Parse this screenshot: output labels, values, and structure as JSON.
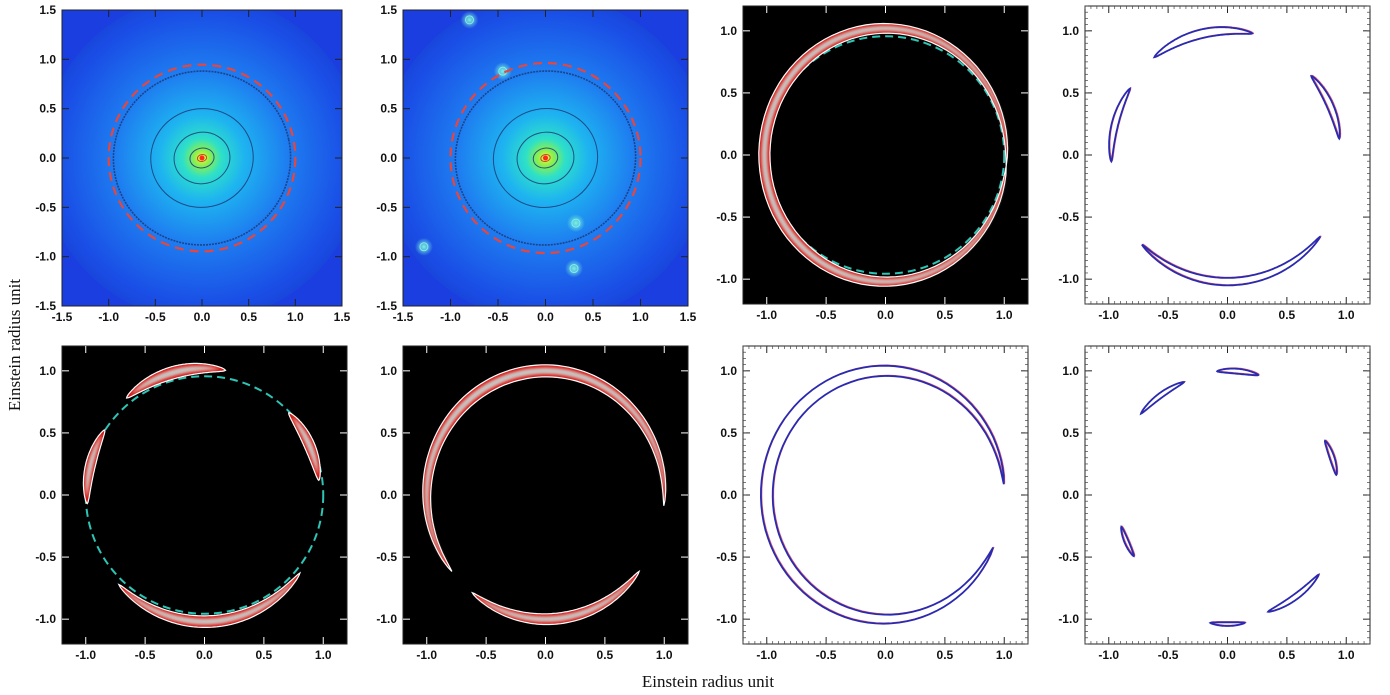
{
  "figure": {
    "xlabel": "Einstein radius unit",
    "ylabel": "Einstein radius unit"
  },
  "chart_data": [
    {
      "type": "heatmap",
      "panel": "top-1",
      "content": "galaxy density map with isodensity contours and dashed Einstein circle",
      "style": "density",
      "xlim": [
        -1.5,
        1.5
      ],
      "ylim": [
        -1.5,
        1.5
      ],
      "xticks": [
        "-1.5",
        "-1.0",
        "-0.5",
        "0.0",
        "0.5",
        "1.0",
        "1.5"
      ],
      "yticks": [
        "-1.5",
        "-1.0",
        "-0.5",
        "0.0",
        "0.5",
        "1.0",
        "1.5"
      ],
      "einstein_circle": {
        "radius": 1.0,
        "color": "#e8453c"
      },
      "background_color": "#1a3ee0",
      "substructures": []
    },
    {
      "type": "heatmap",
      "panel": "top-2",
      "content": "galaxy density map with substructure clumps, isodensity contours and dashed Einstein circle",
      "style": "density",
      "xlim": [
        -1.5,
        1.5
      ],
      "ylim": [
        -1.5,
        1.5
      ],
      "xticks": [
        "-1.5",
        "-1.0",
        "-0.5",
        "0.0",
        "0.5",
        "1.0",
        "1.5"
      ],
      "yticks": [
        "-1.5",
        "-1.0",
        "-0.5",
        "0.0",
        "0.5",
        "1.0",
        "1.5"
      ],
      "einstein_circle": {
        "radius": 1.0,
        "color": "#e8453c"
      },
      "background_color": "#1a3ee0",
      "substructures": [
        {
          "x": -0.45,
          "y": 0.88
        },
        {
          "x": 0.32,
          "y": -0.66
        },
        {
          "x": 0.3,
          "y": -1.12
        },
        {
          "x": -0.8,
          "y": 1.4
        },
        {
          "x": -1.28,
          "y": -0.9
        }
      ]
    },
    {
      "type": "heatmap",
      "panel": "top-3",
      "content": "lensed image: nearly complete Einstein ring",
      "style": "ring_image",
      "xlim": [
        -1.2,
        1.2
      ],
      "ylim": [
        -1.2,
        1.2
      ],
      "xticks": [
        "-1.0",
        "-0.5",
        "0.0",
        "0.5",
        "1.0"
      ],
      "yticks": [
        "-1.0",
        "-0.5",
        "0.0",
        "0.5",
        "1.0"
      ],
      "guide_circle": {
        "radius": 1.0,
        "color": "#2ec4b6"
      },
      "arcs": [
        {
          "theta1": -5,
          "theta2": 355,
          "radius": 1.02,
          "width": 0.085
        }
      ]
    },
    {
      "type": "scatter",
      "panel": "top-4",
      "content": "image-plane contours of four lensed arcs",
      "style": "contour",
      "xlim": [
        -1.2,
        1.2
      ],
      "ylim": [
        -1.2,
        1.2
      ],
      "xticks": [
        "-1.0",
        "-0.5",
        "0.0",
        "0.5",
        "1.0"
      ],
      "yticks": [
        "-1.0",
        "-0.5",
        "0.0",
        "0.5",
        "1.0"
      ],
      "arcs": [
        {
          "theta1": 78,
          "theta2": 128,
          "radius": 1.0,
          "width": 0.07
        },
        {
          "theta1": 8,
          "theta2": 42,
          "radius": 0.95,
          "width": 0.055
        },
        {
          "theta1": 147,
          "theta2": 183,
          "radius": 0.98,
          "width": 0.055
        },
        {
          "theta1": 225,
          "theta2": 320,
          "radius": 1.02,
          "width": 0.06
        }
      ]
    },
    {
      "type": "heatmap",
      "panel": "bottom-1",
      "content": "lensed image: four separate arcs on dashed Einstein circle",
      "style": "ring_image",
      "xlim": [
        -1.2,
        1.2
      ],
      "ylim": [
        -1.2,
        1.2
      ],
      "xticks": [
        "-1.0",
        "-0.5",
        "0.0",
        "0.5",
        "1.0"
      ],
      "yticks": [
        "-1.0",
        "-0.5",
        "0.0",
        "0.5",
        "1.0"
      ],
      "guide_circle": {
        "radius": 1.0,
        "color": "#2ec4b6"
      },
      "arcs": [
        {
          "theta1": 80,
          "theta2": 130,
          "radius": 1.02,
          "width": 0.09
        },
        {
          "theta1": 7,
          "theta2": 43,
          "radius": 0.97,
          "width": 0.08
        },
        {
          "theta1": 148,
          "theta2": 184,
          "radius": 0.99,
          "width": 0.075
        },
        {
          "theta1": 225,
          "theta2": 322,
          "radius": 1.02,
          "width": 0.085
        }
      ]
    },
    {
      "type": "heatmap",
      "panel": "bottom-2",
      "content": "lensed image: large arc and bottom arc",
      "style": "ring_image",
      "xlim": [
        -1.2,
        1.2
      ],
      "ylim": [
        -1.2,
        1.2
      ],
      "xticks": [
        "-1.0",
        "-0.5",
        "0.0",
        "0.5",
        "1.0"
      ],
      "yticks": [
        "-1.0",
        "-0.5",
        "0.0",
        "0.5",
        "1.0"
      ],
      "arcs": [
        {
          "theta1": -5,
          "theta2": 218,
          "radius": 1.0,
          "width": 0.09
        },
        {
          "theta1": 232,
          "theta2": 322,
          "radius": 1.0,
          "width": 0.08
        }
      ]
    },
    {
      "type": "scatter",
      "panel": "bottom-3",
      "content": "image-plane contour of a large arc",
      "style": "contour",
      "xlim": [
        -1.2,
        1.2
      ],
      "ylim": [
        -1.2,
        1.2
      ],
      "xticks": [
        "-1.0",
        "-0.5",
        "0.0",
        "0.5",
        "1.0"
      ],
      "yticks": [
        "-1.0",
        "-0.5",
        "0.0",
        "0.5",
        "1.0"
      ],
      "arcs": [
        {
          "theta1": 5,
          "theta2": 335,
          "radius": 1.0,
          "width": 0.1
        }
      ]
    },
    {
      "type": "scatter",
      "panel": "bottom-4",
      "content": "image-plane contours of several small arcs",
      "style": "contour",
      "xlim": [
        -1.2,
        1.2
      ],
      "ylim": [
        -1.2,
        1.2
      ],
      "xticks": [
        "-1.0",
        "-0.5",
        "0.0",
        "0.5",
        "1.0"
      ],
      "yticks": [
        "-1.0",
        "-0.5",
        "0.0",
        "0.5",
        "1.0"
      ],
      "arcs": [
        {
          "theta1": 75,
          "theta2": 95,
          "radius": 1.0,
          "width": 0.04
        },
        {
          "theta1": 112,
          "theta2": 138,
          "radius": 0.98,
          "width": 0.04
        },
        {
          "theta1": 10,
          "theta2": 28,
          "radius": 0.93,
          "width": 0.04
        },
        {
          "theta1": 196,
          "theta2": 212,
          "radius": 0.93,
          "width": 0.035
        },
        {
          "theta1": 262,
          "theta2": 278,
          "radius": 1.04,
          "width": 0.03
        },
        {
          "theta1": 290,
          "theta2": 320,
          "radius": 1.0,
          "width": 0.045
        }
      ]
    }
  ]
}
